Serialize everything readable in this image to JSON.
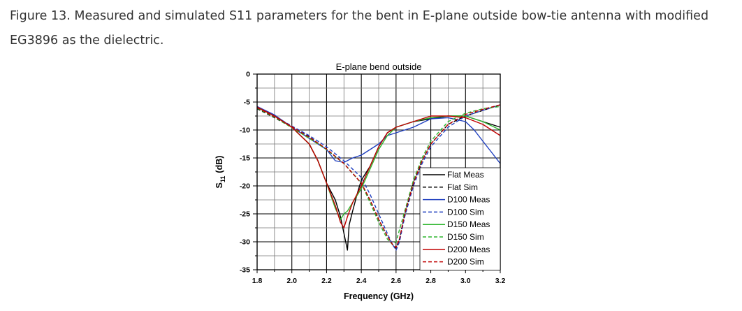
{
  "caption": {
    "label": "Figure 13.",
    "text": "Measured and simulated S11 parameters for the bent in E-plane outside bow-tie antenna with modified EG3896 as the dielectric."
  },
  "chart_data": {
    "type": "line",
    "title": "E-plane bend outside",
    "xlabel": "Frequency (GHz)",
    "ylabel_main": "S",
    "ylabel_sub": "11",
    "ylabel_unit": "(dB)",
    "xlim": [
      1.8,
      3.2
    ],
    "ylim": [
      -35,
      0
    ],
    "xticks": [
      1.8,
      2.0,
      2.2,
      2.4,
      2.6,
      2.8,
      3.0,
      3.2
    ],
    "xtick_labels": [
      "1.8",
      "2.0",
      "2.2",
      "2.4",
      "2.6",
      "2.8",
      "3.0",
      "3.2"
    ],
    "yticks": [
      0,
      -5,
      -10,
      -15,
      -20,
      -25,
      -30,
      -35
    ],
    "ytick_labels": [
      "0",
      "-5",
      "-10",
      "-15",
      "-20",
      "-25",
      "-30",
      "-35"
    ],
    "grid": true,
    "legend_position": "lower-right",
    "series": [
      {
        "name": "Flat Meas",
        "color": "#000000",
        "dash": "solid",
        "x": [
          1.8,
          1.9,
          2.0,
          2.1,
          2.15,
          2.2,
          2.25,
          2.28,
          2.3,
          2.32,
          2.33,
          2.35,
          2.38,
          2.4,
          2.45,
          2.5,
          2.55,
          2.6,
          2.7,
          2.8,
          2.9,
          3.0,
          3.1,
          3.2
        ],
        "y": [
          -5.8,
          -7.5,
          -9.5,
          -12.5,
          -15.5,
          -19.5,
          -22.5,
          -25.5,
          -28.5,
          -31.5,
          -27,
          -24.5,
          -21,
          -19,
          -16.5,
          -13,
          -10.5,
          -9.5,
          -8.5,
          -8,
          -7.5,
          -7.5,
          -8.5,
          -9.5
        ]
      },
      {
        "name": "Flat Sim",
        "color": "#000000",
        "dash": "dashed",
        "x": [
          1.8,
          1.9,
          2.0,
          2.1,
          2.2,
          2.3,
          2.4,
          2.45,
          2.5,
          2.55,
          2.58,
          2.6,
          2.62,
          2.65,
          2.7,
          2.75,
          2.8,
          2.9,
          3.0,
          3.1,
          3.2
        ],
        "y": [
          -6.2,
          -7.8,
          -9.5,
          -11.2,
          -13.5,
          -16,
          -19.5,
          -22.5,
          -26,
          -29,
          -30.5,
          -31.2,
          -29.5,
          -25,
          -19.5,
          -15.5,
          -12.5,
          -9,
          -7.5,
          -6.5,
          -5.5
        ]
      },
      {
        "name": "D100 Meas",
        "color": "#1f3fbf",
        "dash": "solid",
        "x": [
          1.8,
          1.9,
          2.0,
          2.1,
          2.2,
          2.25,
          2.3,
          2.35,
          2.4,
          2.45,
          2.5,
          2.55,
          2.6,
          2.7,
          2.8,
          2.9,
          3.0,
          3.05,
          3.1,
          3.15,
          3.2
        ],
        "y": [
          -5.8,
          -7.3,
          -9.5,
          -11.5,
          -13.5,
          -15.5,
          -15.8,
          -15,
          -14.5,
          -13.5,
          -12.5,
          -11,
          -10.5,
          -9.5,
          -8,
          -7.8,
          -8.5,
          -10,
          -12,
          -14,
          -16
        ]
      },
      {
        "name": "D100 Sim",
        "color": "#1f3fbf",
        "dash": "dashed",
        "x": [
          1.8,
          1.9,
          2.0,
          2.1,
          2.2,
          2.3,
          2.4,
          2.45,
          2.5,
          2.55,
          2.58,
          2.6,
          2.62,
          2.65,
          2.7,
          2.75,
          2.8,
          2.9,
          3.0,
          3.1,
          3.2
        ],
        "y": [
          -6,
          -7.5,
          -9.3,
          -11,
          -13,
          -15.5,
          -18.5,
          -21.5,
          -25,
          -28.5,
          -30.5,
          -31.5,
          -30,
          -25.5,
          -20,
          -16,
          -13,
          -9.5,
          -7.5,
          -6.5,
          -5.5
        ]
      },
      {
        "name": "D150 Meas",
        "color": "#2db52d",
        "dash": "solid",
        "x": [
          1.8,
          1.9,
          2.0,
          2.1,
          2.15,
          2.2,
          2.25,
          2.28,
          2.3,
          2.32,
          2.35,
          2.4,
          2.45,
          2.5,
          2.55,
          2.6,
          2.7,
          2.8,
          2.9,
          3.0,
          3.1,
          3.2
        ],
        "y": [
          -6,
          -7.5,
          -9.5,
          -12.5,
          -15.5,
          -19.5,
          -24,
          -26,
          -25,
          -24.5,
          -23,
          -20.5,
          -17,
          -13.5,
          -11,
          -9.5,
          -8.5,
          -7.8,
          -7.5,
          -7.5,
          -8.5,
          -10
        ]
      },
      {
        "name": "D150 Sim",
        "color": "#2db52d",
        "dash": "dashed",
        "x": [
          1.8,
          1.9,
          2.0,
          2.1,
          2.2,
          2.3,
          2.4,
          2.45,
          2.5,
          2.55,
          2.58,
          2.6,
          2.65,
          2.7,
          2.75,
          2.8,
          2.9,
          3.0,
          3.1,
          3.2
        ],
        "y": [
          -6.1,
          -7.7,
          -9.6,
          -11.5,
          -13.5,
          -16,
          -19.5,
          -23,
          -26.5,
          -29.5,
          -30.5,
          -30,
          -24.5,
          -19,
          -15,
          -12,
          -8.5,
          -7,
          -6.2,
          -5.8
        ]
      },
      {
        "name": "D200 Meas",
        "color": "#c00000",
        "dash": "solid",
        "x": [
          1.8,
          1.9,
          2.0,
          2.1,
          2.15,
          2.2,
          2.25,
          2.28,
          2.3,
          2.32,
          2.35,
          2.4,
          2.45,
          2.5,
          2.55,
          2.6,
          2.7,
          2.8,
          2.9,
          3.0,
          3.1,
          3.2
        ],
        "y": [
          -5.9,
          -7.5,
          -9.5,
          -12.5,
          -15.5,
          -19.5,
          -23.5,
          -26.5,
          -27.5,
          -25.5,
          -23,
          -20,
          -16.5,
          -13,
          -10.5,
          -9.5,
          -8.5,
          -7.5,
          -7.5,
          -7.8,
          -9,
          -11
        ]
      },
      {
        "name": "D200 Sim",
        "color": "#c00000",
        "dash": "dashed",
        "x": [
          1.8,
          1.9,
          2.0,
          2.1,
          2.2,
          2.3,
          2.4,
          2.45,
          2.5,
          2.55,
          2.58,
          2.6,
          2.62,
          2.65,
          2.7,
          2.75,
          2.8,
          2.9,
          3.0,
          3.1,
          3.2
        ],
        "y": [
          -6,
          -7.6,
          -9.4,
          -11.3,
          -13.4,
          -16,
          -19.5,
          -22.5,
          -26,
          -29,
          -30.5,
          -31,
          -29.5,
          -25,
          -19.5,
          -15.5,
          -12.5,
          -9,
          -7.2,
          -6.3,
          -5.5
        ]
      }
    ]
  }
}
